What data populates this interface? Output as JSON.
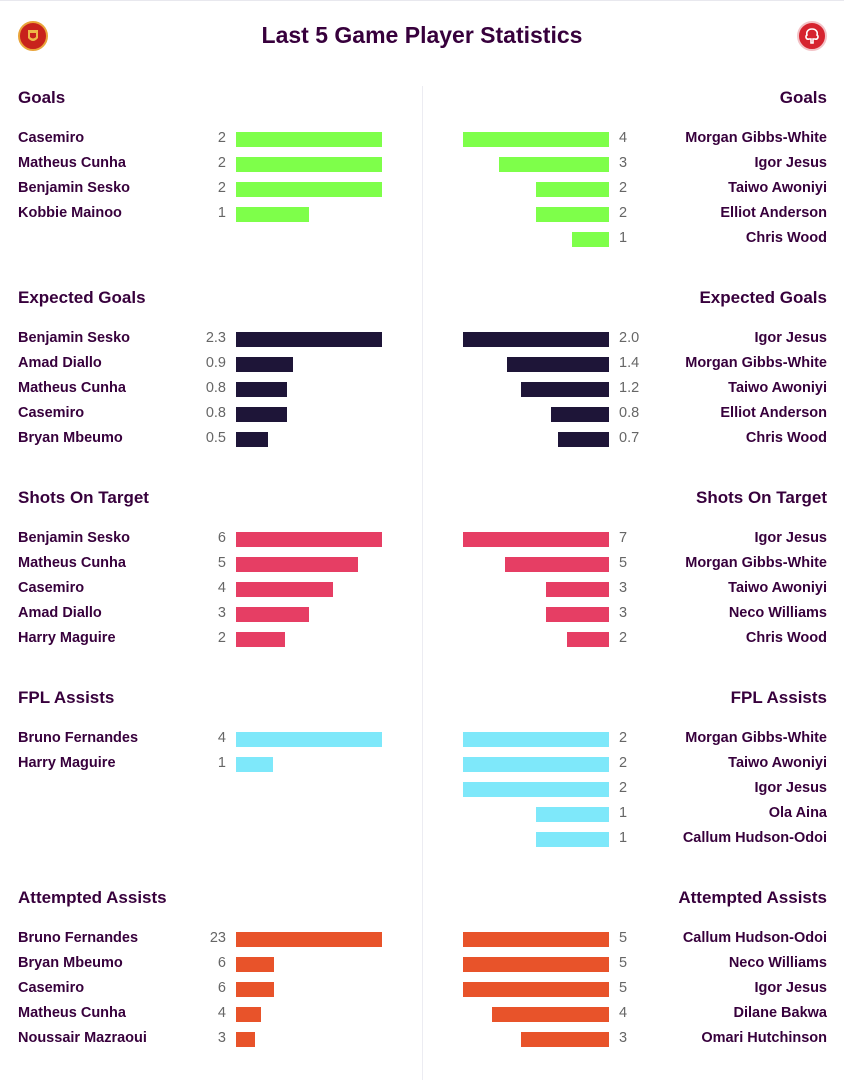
{
  "header": {
    "title": "Last 5 Game Player Statistics",
    "home_crest_icon": "manchester-united-crest-icon",
    "away_crest_icon": "nottingham-forest-crest-icon"
  },
  "chart_data": {
    "type": "bar",
    "orientation": "horizontal",
    "grid": false,
    "sections": [
      {
        "title": "Goals",
        "color": "#7eff4a",
        "home": [
          {
            "name": "Casemiro",
            "label": "2",
            "value": 2
          },
          {
            "name": "Matheus Cunha",
            "label": "2",
            "value": 2
          },
          {
            "name": "Benjamin Sesko",
            "label": "2",
            "value": 2
          },
          {
            "name": "Kobbie Mainoo",
            "label": "1",
            "value": 1
          }
        ],
        "away": [
          {
            "name": "Morgan Gibbs-White",
            "label": "4",
            "value": 4
          },
          {
            "name": "Igor Jesus",
            "label": "3",
            "value": 3
          },
          {
            "name": "Taiwo Awoniyi",
            "label": "2",
            "value": 2
          },
          {
            "name": "Elliot Anderson",
            "label": "2",
            "value": 2
          },
          {
            "name": "Chris Wood",
            "label": "1",
            "value": 1
          }
        ]
      },
      {
        "title": "Expected Goals",
        "color": "#1e1538",
        "home": [
          {
            "name": "Benjamin Sesko",
            "label": "2.3",
            "value": 2.3
          },
          {
            "name": "Amad Diallo",
            "label": "0.9",
            "value": 0.9
          },
          {
            "name": "Matheus Cunha",
            "label": "0.8",
            "value": 0.8
          },
          {
            "name": "Casemiro",
            "label": "0.8",
            "value": 0.8
          },
          {
            "name": "Bryan Mbeumo",
            "label": "0.5",
            "value": 0.5
          }
        ],
        "away": [
          {
            "name": "Igor Jesus",
            "label": "2.0",
            "value": 2.0
          },
          {
            "name": "Morgan Gibbs-White",
            "label": "1.4",
            "value": 1.4
          },
          {
            "name": "Taiwo Awoniyi",
            "label": "1.2",
            "value": 1.2
          },
          {
            "name": "Elliot Anderson",
            "label": "0.8",
            "value": 0.8
          },
          {
            "name": "Chris Wood",
            "label": "0.7",
            "value": 0.7
          }
        ]
      },
      {
        "title": "Shots On Target",
        "color": "#e63e64",
        "home": [
          {
            "name": "Benjamin Sesko",
            "label": "6",
            "value": 6
          },
          {
            "name": "Matheus Cunha",
            "label": "5",
            "value": 5
          },
          {
            "name": "Casemiro",
            "label": "4",
            "value": 4
          },
          {
            "name": "Amad Diallo",
            "label": "3",
            "value": 3
          },
          {
            "name": "Harry Maguire",
            "label": "2",
            "value": 2
          }
        ],
        "away": [
          {
            "name": "Igor Jesus",
            "label": "7",
            "value": 7
          },
          {
            "name": "Morgan Gibbs-White",
            "label": "5",
            "value": 5
          },
          {
            "name": "Taiwo Awoniyi",
            "label": "3",
            "value": 3
          },
          {
            "name": "Neco Williams",
            "label": "3",
            "value": 3
          },
          {
            "name": "Chris Wood",
            "label": "2",
            "value": 2
          }
        ]
      },
      {
        "title": "FPL Assists",
        "color": "#7ee8fa",
        "home": [
          {
            "name": "Bruno Fernandes",
            "label": "4",
            "value": 4
          },
          {
            "name": "Harry Maguire",
            "label": "1",
            "value": 1
          }
        ],
        "away": [
          {
            "name": "Morgan Gibbs-White",
            "label": "2",
            "value": 2
          },
          {
            "name": "Taiwo Awoniyi",
            "label": "2",
            "value": 2
          },
          {
            "name": "Igor Jesus",
            "label": "2",
            "value": 2
          },
          {
            "name": "Ola Aina",
            "label": "1",
            "value": 1
          },
          {
            "name": "Callum Hudson-Odoi",
            "label": "1",
            "value": 1
          }
        ]
      },
      {
        "title": "Attempted Assists",
        "color": "#e8532a",
        "home": [
          {
            "name": "Bruno Fernandes",
            "label": "23",
            "value": 23
          },
          {
            "name": "Bryan Mbeumo",
            "label": "6",
            "value": 6
          },
          {
            "name": "Casemiro",
            "label": "6",
            "value": 6
          },
          {
            "name": "Matheus Cunha",
            "label": "4",
            "value": 4
          },
          {
            "name": "Noussair Mazraoui",
            "label": "3",
            "value": 3
          }
        ],
        "away": [
          {
            "name": "Callum Hudson-Odoi",
            "label": "5",
            "value": 5
          },
          {
            "name": "Neco Williams",
            "label": "5",
            "value": 5
          },
          {
            "name": "Igor Jesus",
            "label": "5",
            "value": 5
          },
          {
            "name": "Dilane Bakwa",
            "label": "4",
            "value": 4
          },
          {
            "name": "Omari Hutchinson",
            "label": "3",
            "value": 3
          }
        ]
      }
    ]
  }
}
